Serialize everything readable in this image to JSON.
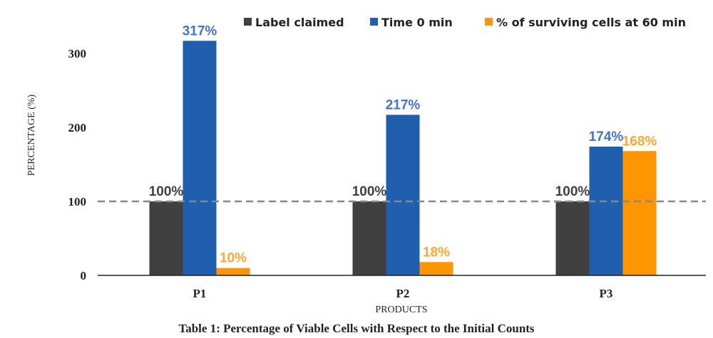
{
  "chart_data": {
    "type": "bar",
    "categories": [
      "P1",
      "P2",
      "P3"
    ],
    "series": [
      {
        "name": "Label claimed",
        "values": [
          100,
          100,
          100
        ],
        "labels": [
          "100%",
          "100%",
          "100%"
        ],
        "color": "#404040",
        "label_color": "#404040"
      },
      {
        "name": "Time 0 min",
        "values": [
          317,
          217,
          174
        ],
        "labels": [
          "317%",
          "217%",
          "174%"
        ],
        "color": "#1f5fad",
        "label_color": "#4472c4"
      },
      {
        "name": "% of surviving cells at 60 min",
        "values": [
          10,
          18,
          168
        ],
        "labels": [
          "10%",
          "18%",
          "168%"
        ],
        "color": "#ff9500",
        "label_color": "#ffa733"
      }
    ],
    "yticks": [
      0,
      100,
      200,
      300
    ],
    "ylim": [
      0,
      340
    ],
    "xlabel": "PRODUCTS",
    "ylabel": "PERCENTAGE (%)",
    "reference_line": {
      "value": 100,
      "style": "dashed",
      "color": "#888888"
    },
    "legend_position": "top",
    "grid": false,
    "caption": "Table 1: Percentage of Viable Cells with Respect to the Initial Counts"
  }
}
